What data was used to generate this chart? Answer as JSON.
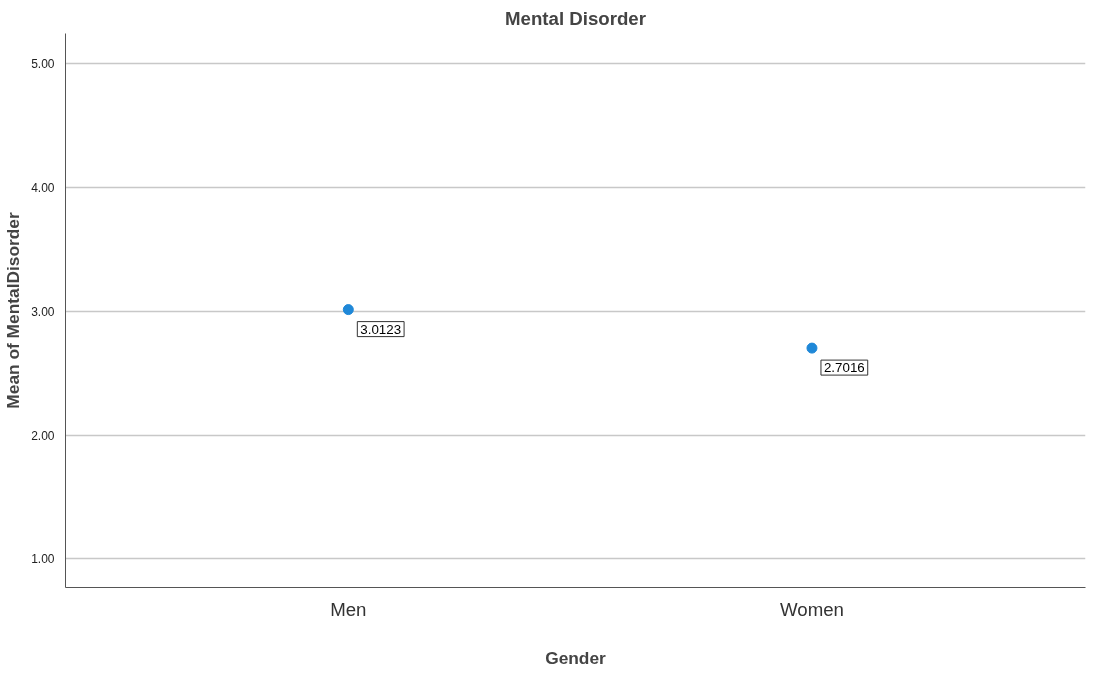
{
  "chart_data": {
    "type": "scatter",
    "title": "Mental Disorder",
    "xlabel": "Gender",
    "ylabel": "Mean of MentalDisorder",
    "categories": [
      "Men",
      "Women"
    ],
    "values": [
      3.0123,
      2.7016
    ],
    "color": "#1f88d8",
    "marker": "circle",
    "data_labels": true,
    "ylim": [
      0.77,
      5.24
    ],
    "yticks": [
      {
        "value": 1,
        "label": "1.00"
      },
      {
        "value": 2,
        "label": "2.00"
      },
      {
        "value": 3,
        "label": "3.00"
      },
      {
        "value": 4,
        "label": "4.00"
      },
      {
        "value": 5,
        "label": "5.00"
      }
    ],
    "grid": "y"
  }
}
